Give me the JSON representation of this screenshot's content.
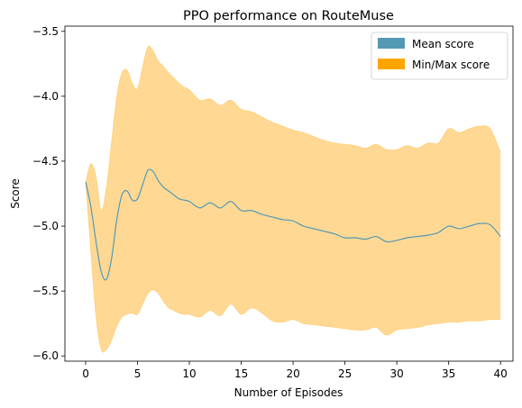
{
  "chart_data": {
    "type": "area",
    "title": "PPO performance on RouteMuse",
    "xlabel": "Number of Episodes",
    "ylabel": "Score",
    "xlim": [
      -2,
      41.2
    ],
    "ylim": [
      -6.04,
      -3.46
    ],
    "xticks": [
      0,
      5,
      10,
      15,
      20,
      25,
      30,
      35,
      40
    ],
    "yticks": [
      -6.0,
      -5.5,
      -5.0,
      -4.5,
      -4.0,
      -3.5
    ],
    "xtick_labels": [
      "0",
      "5",
      "10",
      "15",
      "20",
      "25",
      "30",
      "35",
      "40"
    ],
    "ytick_labels": [
      "−6.0",
      "−5.5",
      "−5.0",
      "−4.5",
      "−4.0",
      "−3.5"
    ],
    "grid": false,
    "legend_position": "top-right",
    "legend": [
      {
        "label": "Mean score",
        "color": "#5499b4"
      },
      {
        "label": "Min/Max score",
        "color": "#ffa500"
      }
    ],
    "colors": {
      "mean_line": "#5499b4",
      "band_fill": "#ffa500",
      "band_opacity": 0.42
    },
    "x": [
      0,
      0.5,
      1,
      1.5,
      2,
      2.5,
      3,
      3.5,
      4,
      4.5,
      5,
      5.5,
      6,
      6.5,
      7,
      7.5,
      8,
      8.5,
      9,
      9.5,
      10,
      11,
      12,
      13,
      14,
      15,
      16,
      17,
      18,
      19,
      20,
      21,
      22,
      23,
      24,
      25,
      26,
      27,
      28,
      29,
      30,
      31,
      32,
      33,
      34,
      35,
      36,
      37,
      38,
      39,
      40
    ],
    "series": [
      {
        "name": "Mean score",
        "values": [
          -4.66,
          -4.85,
          -5.12,
          -5.35,
          -5.41,
          -5.25,
          -4.95,
          -4.76,
          -4.73,
          -4.8,
          -4.79,
          -4.68,
          -4.57,
          -4.58,
          -4.65,
          -4.7,
          -4.73,
          -4.76,
          -4.79,
          -4.8,
          -4.81,
          -4.86,
          -4.82,
          -4.86,
          -4.81,
          -4.88,
          -4.88,
          -4.91,
          -4.93,
          -4.95,
          -4.96,
          -5.0,
          -5.02,
          -5.04,
          -5.06,
          -5.09,
          -5.09,
          -5.1,
          -5.08,
          -5.12,
          -5.11,
          -5.09,
          -5.08,
          -5.07,
          -5.05,
          -5.0,
          -5.02,
          -5.0,
          -4.98,
          -4.99,
          -5.08
        ]
      },
      {
        "name": "Max",
        "values": [
          -4.66,
          -4.52,
          -4.62,
          -4.88,
          -4.7,
          -4.35,
          -4.0,
          -3.82,
          -3.8,
          -3.9,
          -3.94,
          -3.77,
          -3.62,
          -3.65,
          -3.73,
          -3.77,
          -3.82,
          -3.86,
          -3.9,
          -3.93,
          -3.95,
          -4.03,
          -4.02,
          -4.07,
          -4.03,
          -4.1,
          -4.12,
          -4.16,
          -4.2,
          -4.23,
          -4.26,
          -4.28,
          -4.31,
          -4.34,
          -4.36,
          -4.37,
          -4.38,
          -4.4,
          -4.37,
          -4.41,
          -4.41,
          -4.38,
          -4.4,
          -4.36,
          -4.36,
          -4.25,
          -4.28,
          -4.25,
          -4.23,
          -4.25,
          -4.43
        ]
      },
      {
        "name": "Min",
        "values": [
          -4.66,
          -5.2,
          -5.7,
          -5.95,
          -5.95,
          -5.88,
          -5.77,
          -5.7,
          -5.68,
          -5.67,
          -5.68,
          -5.6,
          -5.52,
          -5.49,
          -5.52,
          -5.58,
          -5.63,
          -5.65,
          -5.67,
          -5.68,
          -5.68,
          -5.7,
          -5.65,
          -5.69,
          -5.6,
          -5.68,
          -5.63,
          -5.67,
          -5.73,
          -5.74,
          -5.72,
          -5.75,
          -5.76,
          -5.77,
          -5.78,
          -5.79,
          -5.8,
          -5.8,
          -5.78,
          -5.84,
          -5.8,
          -5.79,
          -5.78,
          -5.76,
          -5.75,
          -5.74,
          -5.74,
          -5.73,
          -5.73,
          -5.72,
          -5.72
        ]
      }
    ]
  }
}
